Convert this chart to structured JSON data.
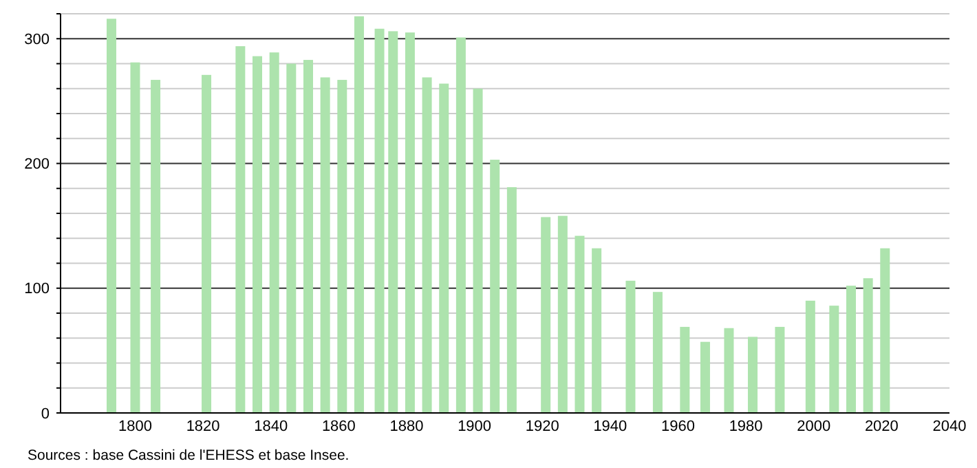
{
  "chart_data": {
    "type": "bar",
    "x": [
      1793,
      1800,
      1806,
      1821,
      1831,
      1836,
      1841,
      1846,
      1851,
      1856,
      1861,
      1866,
      1872,
      1876,
      1881,
      1886,
      1891,
      1896,
      1901,
      1906,
      1911,
      1921,
      1926,
      1931,
      1936,
      1946,
      1954,
      1962,
      1968,
      1975,
      1982,
      1990,
      1999,
      2006,
      2011,
      2016,
      2021
    ],
    "values": [
      316,
      281,
      267,
      271,
      294,
      286,
      289,
      280,
      283,
      269,
      267,
      318,
      308,
      306,
      305,
      269,
      264,
      301,
      260,
      203,
      181,
      157,
      158,
      142,
      132,
      106,
      97,
      69,
      57,
      68,
      61,
      69,
      90,
      86,
      102,
      108,
      132
    ],
    "color": "#ade3ad",
    "xlim": [
      1778,
      2040
    ],
    "xticks": [
      1800,
      1820,
      1840,
      1860,
      1880,
      1900,
      1920,
      1940,
      1960,
      1980,
      2000,
      2020,
      2040
    ],
    "ylim": [
      0,
      320
    ],
    "yticks": [
      0,
      {
        "value": 20,
        "label": null
      },
      {
        "value": 40,
        "label": null
      },
      {
        "value": 60,
        "label": null
      },
      {
        "value": 80,
        "label": null
      },
      100,
      {
        "value": 120,
        "label": null
      },
      {
        "value": 140,
        "label": null
      },
      {
        "value": 160,
        "label": null
      },
      {
        "value": 180,
        "label": null
      },
      200,
      {
        "value": 220,
        "label": null
      },
      {
        "value": 240,
        "label": null
      },
      {
        "value": 260,
        "label": null
      },
      {
        "value": 280,
        "label": null
      },
      300,
      {
        "value": 320,
        "label": null
      }
    ],
    "grid": "y",
    "annotations": [
      "Sources : base Cassini de l'EHESS et base Insee."
    ]
  }
}
